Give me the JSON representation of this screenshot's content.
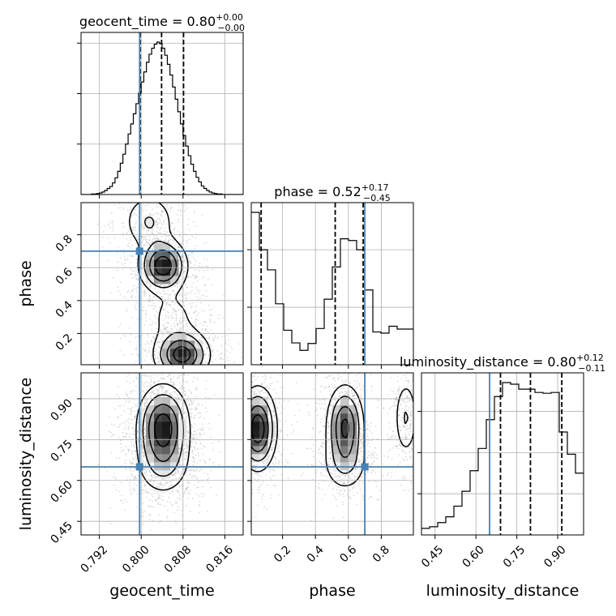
{
  "chart_data": {
    "type": "corner",
    "grid": true,
    "colors": {
      "truth": "#4682b4",
      "histogram": "#000000",
      "grid": "#b0b0b0",
      "quantile": "#000000",
      "samples": "#9a9a9a"
    },
    "parameters": [
      {
        "name": "geocent_time",
        "xlabel": "geocent_time",
        "range": [
          0.7885,
          0.8195
        ],
        "ticks": [
          0.792,
          0.8,
          0.808,
          0.816
        ],
        "tick_labels": [
          "0.792",
          "0.800",
          "0.808",
          "0.816"
        ],
        "truth": 0.7997,
        "quantiles": [
          0.7998,
          0.8039,
          0.8081
        ],
        "title_main": "geocent_time = 0.80",
        "title_sup": "+0.00",
        "title_sub": "−0.00",
        "hist_edges": [
          0.7885,
          0.789,
          0.7895,
          0.79,
          0.7905,
          0.791,
          0.7915,
          0.792,
          0.7925,
          0.793,
          0.7935,
          0.794,
          0.7945,
          0.795,
          0.7955,
          0.796,
          0.7965,
          0.797,
          0.7975,
          0.798,
          0.7985,
          0.799,
          0.7995,
          0.8,
          0.8005,
          0.801,
          0.8015,
          0.802,
          0.8025,
          0.803,
          0.8035,
          0.804,
          0.8045,
          0.805,
          0.8055,
          0.806,
          0.8065,
          0.807,
          0.8075,
          0.808,
          0.8085,
          0.809,
          0.8095,
          0.81,
          0.8105,
          0.811,
          0.8115,
          0.812,
          0.8125,
          0.813,
          0.8135,
          0.814,
          0.8145,
          0.815,
          0.8155,
          0.816,
          0.8165,
          0.817,
          0.8175,
          0.818,
          0.8185,
          0.819,
          0.8195
        ],
        "hist_counts": [
          0,
          0,
          0,
          0,
          1,
          1,
          2,
          3,
          5,
          8,
          12,
          16,
          23,
          33,
          46,
          62,
          80,
          100,
          120,
          140,
          160,
          180,
          201,
          223,
          243,
          262,
          278,
          290,
          298,
          302,
          299,
          290,
          276,
          258,
          237,
          213,
          189,
          164,
          140,
          117,
          96,
          77,
          60,
          46,
          34,
          25,
          17,
          12,
          8,
          5,
          3,
          2,
          1,
          1,
          0,
          0,
          0,
          0,
          0,
          0,
          0,
          0
        ]
      },
      {
        "name": "phase",
        "xlabel": "phase",
        "ylabel": "phase",
        "range": [
          0.01,
          0.995
        ],
        "ticks": [
          0.2,
          0.4,
          0.6,
          0.8
        ],
        "tick_labels": [
          "0.2",
          "0.4",
          "0.6",
          "0.8"
        ],
        "truth": 0.7,
        "quantiles": [
          0.07,
          0.52,
          0.69
        ],
        "title_main": "phase = 0.52",
        "title_sup": "+0.17",
        "title_sub": "−0.45",
        "hist_edges": [
          0.01,
          0.05925,
          0.1085,
          0.15775,
          0.207,
          0.25625,
          0.3055,
          0.35475,
          0.404,
          0.45325,
          0.5025,
          0.55175,
          0.601,
          0.65025,
          0.6995,
          0.74875,
          0.798,
          0.84725,
          0.8965,
          0.94575,
          0.995
        ],
        "hist_counts": [
          265,
          200,
          165,
          106,
          60,
          38,
          25,
          37,
          63,
          114,
          170,
          219,
          216,
          200,
          130,
          57,
          55,
          67,
          62,
          62
        ]
      },
      {
        "name": "luminosity_distance",
        "xlabel": "luminosity_distance",
        "ylabel": "luminosity_distance",
        "range": [
          0.4,
          0.995
        ],
        "ticks": [
          0.45,
          0.6,
          0.75,
          0.9
        ],
        "tick_labels": [
          "0.45",
          "0.60",
          "0.75",
          "0.90"
        ],
        "truth": 0.65,
        "quantiles": [
          0.69,
          0.8,
          0.915
        ],
        "title_main": "luminosity_distance = 0.80",
        "title_sup": "+0.12",
        "title_sub": "−0.11",
        "hist_edges": [
          0.4,
          0.42975,
          0.4595,
          0.48925,
          0.519,
          0.54875,
          0.5785,
          0.60825,
          0.638,
          0.66775,
          0.6975,
          0.72725,
          0.757,
          0.78675,
          0.8165,
          0.84625,
          0.876,
          0.90575,
          0.9355,
          0.96525,
          0.995
        ],
        "hist_counts": [
          8,
          10,
          15,
          22,
          35,
          53,
          78,
          105,
          140,
          168,
          185,
          183,
          177,
          177,
          173,
          172,
          173,
          125,
          98,
          75
        ]
      }
    ],
    "pairs": [
      {
        "x": "geocent_time",
        "y": "phase",
        "truth": [
          0.7997,
          0.7
        ],
        "density_peaks": [
          {
            "x": 0.8042,
            "y": 0.61,
            "sx": 0.0024,
            "sy": 0.085,
            "w": 1.0
          },
          {
            "x": 0.8078,
            "y": 0.07,
            "sx": 0.0028,
            "sy": 0.08,
            "w": 0.95
          },
          {
            "x": 0.8015,
            "y": 0.88,
            "sx": 0.0028,
            "sy": 0.1,
            "w": 0.35
          },
          {
            "x": 0.806,
            "y": 0.3,
            "sx": 0.003,
            "sy": 0.1,
            "w": 0.2
          }
        ]
      },
      {
        "x": "geocent_time",
        "y": "luminosity_distance",
        "truth": [
          0.7997,
          0.65
        ],
        "density_peaks": [
          {
            "x": 0.8042,
            "y": 0.8,
            "sx": 0.0026,
            "sy": 0.08,
            "w": 1.0
          },
          {
            "x": 0.8042,
            "y": 0.66,
            "sx": 0.003,
            "sy": 0.07,
            "w": 0.35
          }
        ]
      },
      {
        "x": "phase",
        "y": "luminosity_distance",
        "truth": [
          0.7,
          0.65
        ],
        "density_peaks": [
          {
            "x": 0.05,
            "y": 0.79,
            "sx": 0.06,
            "sy": 0.08,
            "w": 1.0
          },
          {
            "x": 0.58,
            "y": 0.8,
            "sx": 0.06,
            "sy": 0.08,
            "w": 0.85
          },
          {
            "x": 0.95,
            "y": 0.83,
            "sx": 0.04,
            "sy": 0.08,
            "w": 0.35
          },
          {
            "x": 0.58,
            "y": 0.66,
            "sx": 0.08,
            "sy": 0.06,
            "w": 0.3
          }
        ]
      }
    ]
  }
}
